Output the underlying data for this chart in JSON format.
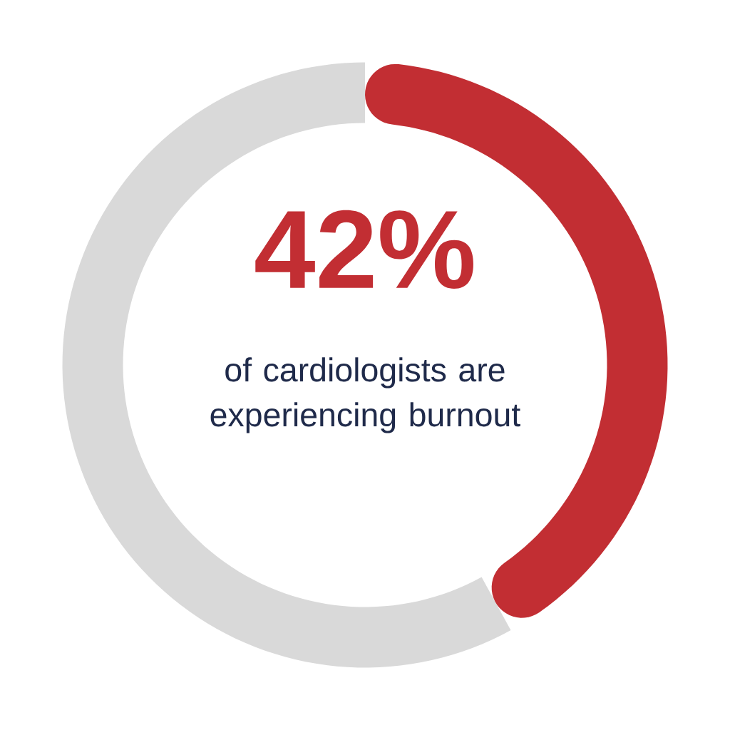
{
  "chart_data": {
    "type": "donut",
    "categories": [
      null,
      null
    ],
    "values": [
      42,
      58
    ],
    "colors": [
      "#c22e33",
      "#d9d9d9"
    ],
    "value_labels": [
      "42%",
      null
    ],
    "annotations": [
      "of cardiologists are experiencing burnout"
    ]
  }
}
